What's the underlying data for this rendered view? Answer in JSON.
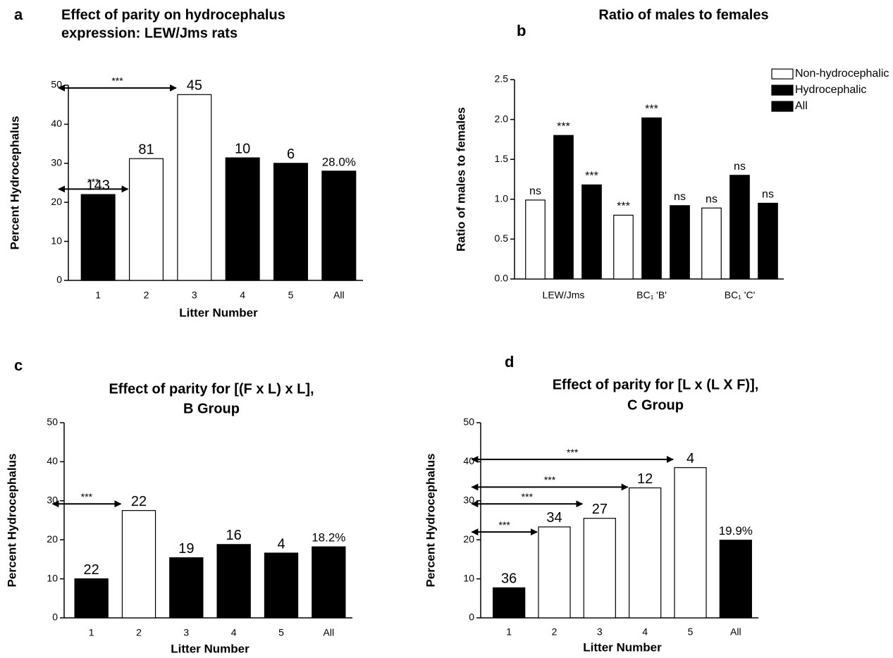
{
  "chart_data": [
    {
      "type": "bar",
      "panel": "a",
      "title": [
        "Effect of parity on hydrocephalus",
        "expression: LEW/Jms rats"
      ],
      "xlabel": "Litter Number",
      "ylabel": "Percent Hydrocephalus",
      "categories": [
        "1",
        "2",
        "3",
        "4",
        "5",
        "All"
      ],
      "values": [
        22,
        31.2,
        47.6,
        31.4,
        30,
        28.0
      ],
      "colors": [
        "#000000",
        "#ffffff",
        "#ffffff",
        "#000000",
        "#000000",
        "#000000"
      ],
      "bar_labels": [
        "143",
        "81",
        "45",
        "10",
        "6",
        "28.0%"
      ],
      "ylim": [
        0,
        50
      ],
      "yticks": [
        0,
        10,
        20,
        30,
        40,
        50
      ],
      "annotations": [
        {
          "text": "***",
          "between": [
            "1",
            "3"
          ],
          "y": 49.3
        },
        {
          "text": "***",
          "between": [
            "1",
            "2"
          ],
          "y": 23.4
        }
      ]
    },
    {
      "type": "grouped_bar",
      "panel": "b",
      "title": [
        "Ratio of males to females"
      ],
      "ylabel": "Ratio of males to females",
      "categories": [
        "LEW/Jms",
        "BC₁  'B'",
        "BC₁  'C'"
      ],
      "series": [
        {
          "name": "Non-hydrocephalic",
          "color": "#ffffff",
          "values": [
            0.99,
            0.8,
            0.89
          ],
          "bar_labels": [
            "ns",
            "***",
            "ns"
          ]
        },
        {
          "name": "Hydrocephalic",
          "color": "#000000",
          "values": [
            1.8,
            2.02,
            1.3
          ],
          "bar_labels": [
            "***",
            "***",
            "ns"
          ]
        },
        {
          "name": "All",
          "color": "#000000",
          "values": [
            1.18,
            0.92,
            0.95
          ],
          "bar_labels": [
            "***",
            "ns",
            "ns"
          ]
        }
      ],
      "ylim": [
        0,
        2.5
      ],
      "yticks": [
        {
          "value": 0,
          "label": "0.0"
        },
        0.5,
        {
          "value": 1,
          "label": "1.0"
        },
        1.5,
        {
          "value": 2,
          "label": "2.0"
        },
        2.5
      ],
      "legend": "upper right"
    },
    {
      "type": "bar",
      "panel": "c",
      "title": [
        "Effect of parity for [(F x L) x L],",
        "B Group"
      ],
      "xlabel": "Litter Number",
      "ylabel": "Percent Hydrocephalus",
      "categories": [
        "1",
        "2",
        "3",
        "4",
        "5",
        "All"
      ],
      "values": [
        10,
        27.5,
        15.4,
        18.8,
        16.6,
        18.2
      ],
      "colors": [
        "#000000",
        "#ffffff",
        "#000000",
        "#000000",
        "#000000",
        "#000000"
      ],
      "bar_labels": [
        "22",
        "22",
        "19",
        "16",
        "4",
        "18.2%"
      ],
      "ylim": [
        0,
        50
      ],
      "yticks": [
        0,
        10,
        20,
        30,
        40,
        50
      ],
      "annotations": [
        {
          "text": "***",
          "between": [
            "1",
            "2"
          ],
          "y": 29.2
        }
      ]
    },
    {
      "type": "bar",
      "panel": "d",
      "title": [
        "Effect of parity for [L x (L X F)],",
        "C  Group"
      ],
      "xlabel": "Litter Number",
      "ylabel": "Percent Hydrocephalus",
      "categories": [
        "1",
        "2",
        "3",
        "4",
        "5",
        "All"
      ],
      "values": [
        7.7,
        23.3,
        25.5,
        33.3,
        38.5,
        19.9
      ],
      "colors": [
        "#000000",
        "#ffffff",
        "#ffffff",
        "#ffffff",
        "#ffffff",
        "#000000"
      ],
      "bar_labels": [
        "36",
        "34",
        "27",
        "12",
        "4",
        "19.9%"
      ],
      "ylim": [
        0,
        50
      ],
      "yticks": [
        0,
        10,
        20,
        30,
        40,
        50
      ],
      "annotations": [
        {
          "text": "***",
          "between": [
            "1",
            "5"
          ],
          "y": 40.6
        },
        {
          "text": "***",
          "between": [
            "1",
            "4"
          ],
          "y": 33.5
        },
        {
          "text": "***",
          "between": [
            "1",
            "3"
          ],
          "y": 29.2
        },
        {
          "text": "***",
          "between": [
            "1",
            "2"
          ],
          "y": 22
        }
      ]
    }
  ]
}
